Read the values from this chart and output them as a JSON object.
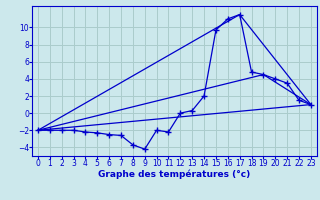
{
  "title": "Graphe des températures (°c)",
  "background_color": "#cce8ec",
  "grid_color": "#aacccc",
  "line_color": "#0000cc",
  "xlim": [
    -0.5,
    23.5
  ],
  "ylim": [
    -5.0,
    12.5
  ],
  "yticks": [
    -4,
    -2,
    0,
    2,
    4,
    6,
    8,
    10
  ],
  "xticks": [
    0,
    1,
    2,
    3,
    4,
    5,
    6,
    7,
    8,
    9,
    10,
    11,
    12,
    13,
    14,
    15,
    16,
    17,
    18,
    19,
    20,
    21,
    22,
    23
  ],
  "line1_x": [
    0,
    1,
    2,
    3,
    4,
    5,
    6,
    7,
    8,
    9,
    10,
    11,
    12,
    13,
    14,
    15,
    16,
    17,
    18,
    19,
    20,
    21,
    22,
    23
  ],
  "line1_y": [
    -2,
    -2,
    -2,
    -2,
    -2.2,
    -2.3,
    -2.5,
    -2.6,
    -3.7,
    -4.2,
    -2.0,
    -2.2,
    0.0,
    0.3,
    2.0,
    9.7,
    11.0,
    11.5,
    4.8,
    4.5,
    4.0,
    3.5,
    1.5,
    1.0
  ],
  "line2_x": [
    0,
    23
  ],
  "line2_y": [
    -2,
    1
  ],
  "line3_x": [
    0,
    17,
    23
  ],
  "line3_y": [
    -2,
    11.5,
    1
  ],
  "line4_x": [
    0,
    19,
    23
  ],
  "line4_y": [
    -2,
    4.5,
    1
  ],
  "marker": "+",
  "markersize": 4,
  "linewidth": 0.9,
  "tick_fontsize": 5.5,
  "xlabel_fontsize": 6.5
}
